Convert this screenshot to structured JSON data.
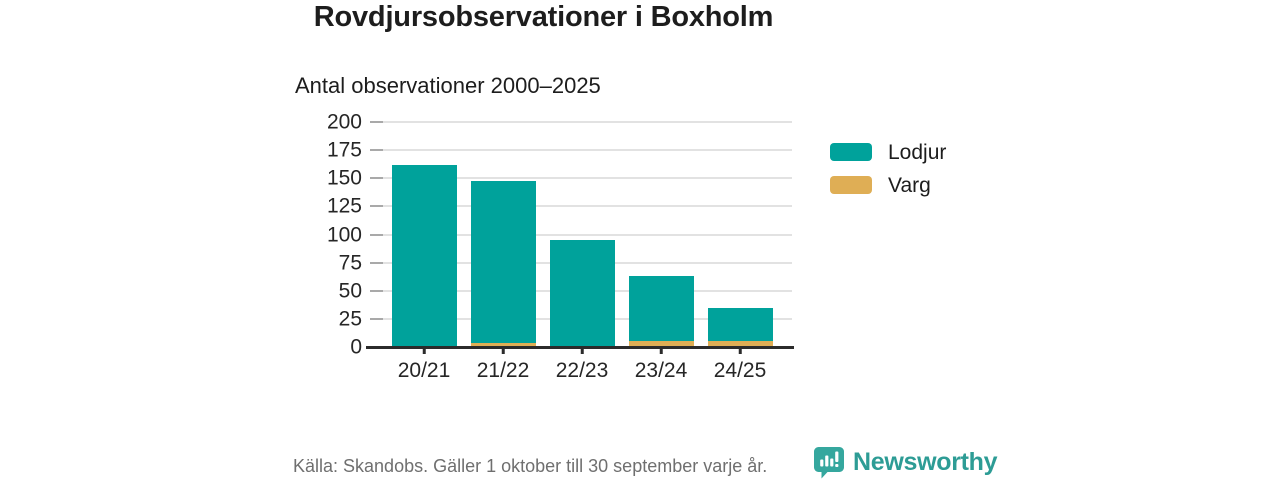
{
  "chart_data": {
    "type": "bar",
    "stacked": true,
    "title": "Rovdjursobservationer i Boxholm",
    "subtitle": "Antal observationer 2000–2025",
    "categories": [
      "20/21",
      "21/22",
      "22/23",
      "23/24",
      "24/25"
    ],
    "series": [
      {
        "name": "Lodjur",
        "color": "#00a29b",
        "values": [
          162,
          144,
          95,
          58,
          30
        ]
      },
      {
        "name": "Varg",
        "color": "#dfae55",
        "values": [
          0,
          4,
          0,
          5,
          5
        ]
      }
    ],
    "totals": [
      162,
      148,
      95,
      63,
      35
    ],
    "stack_order_bottom_to_top": [
      "Varg",
      "Lodjur"
    ],
    "ylim": [
      0,
      200
    ],
    "yticks": [
      0,
      25,
      50,
      75,
      100,
      125,
      150,
      175,
      200
    ],
    "grid": true,
    "legend_position": "right",
    "xlabel": "",
    "ylabel": ""
  },
  "footer": {
    "source": "Källa: Skandobs. Gäller 1 oktober till 30 september varje år.",
    "brand": "Newsworthy"
  },
  "colors": {
    "lodjur": "#00a29b",
    "varg": "#dfae55",
    "brand_teal": "#2d9c95",
    "text_dark": "#1d1d1d",
    "text_muted": "#6f6f6f",
    "gridline": "#e2e2e2",
    "axis": "#2b2b2b"
  }
}
